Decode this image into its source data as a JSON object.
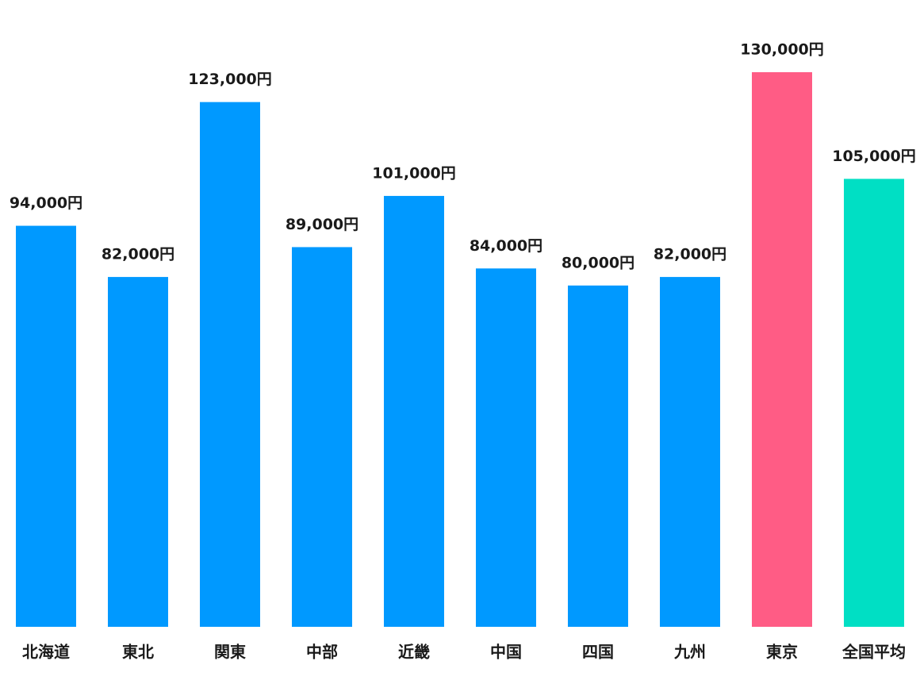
{
  "chart_data": {
    "type": "bar",
    "categories": [
      "北海道",
      "東北",
      "関東",
      "中部",
      "近畿",
      "中国",
      "四国",
      "九州",
      "東京",
      "全国平均"
    ],
    "values": [
      94000,
      82000,
      123000,
      89000,
      101000,
      84000,
      80000,
      82000,
      130000,
      105000
    ],
    "value_labels": [
      "94,000円",
      "82,000円",
      "123,000円",
      "89,000円",
      "101,000円",
      "84,000円",
      "80,000円",
      "82,000円",
      "130,000円",
      "105,000円"
    ],
    "colors": [
      "#0099ff",
      "#0099ff",
      "#0099ff",
      "#0099ff",
      "#0099ff",
      "#0099ff",
      "#0099ff",
      "#0099ff",
      "#ff5c85",
      "#00dfc4"
    ],
    "ylim": [
      0,
      130000
    ]
  }
}
